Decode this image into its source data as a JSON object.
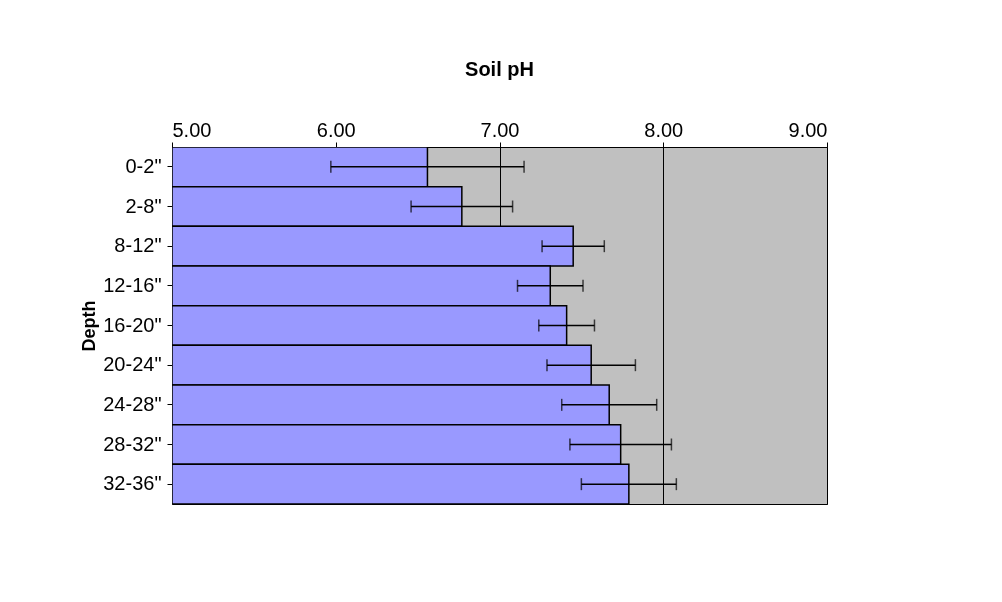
{
  "chart_data": {
    "type": "bar",
    "orientation": "horizontal",
    "title": "Soil pH",
    "ylabel": "Depth",
    "categories": [
      "0-2\"",
      "2-8\"",
      "8-12\"",
      "12-16\"",
      "16-20\"",
      "20-24\"",
      "24-28\"",
      "28-32\"",
      "32-36\""
    ],
    "values": [
      6.56,
      6.77,
      7.45,
      7.31,
      7.41,
      7.56,
      7.67,
      7.74,
      7.79
    ],
    "errors": [
      0.59,
      0.31,
      0.19,
      0.2,
      0.17,
      0.27,
      0.29,
      0.31,
      0.29
    ],
    "color": "#9999ff",
    "xlim": [
      5,
      9
    ],
    "xticks": [
      {
        "value": 5,
        "label": "5.00"
      },
      {
        "value": 6,
        "label": "6.00"
      },
      {
        "value": 7,
        "label": "7.00"
      },
      {
        "value": 8,
        "label": "8.00"
      },
      {
        "value": 9,
        "label": "9.00"
      }
    ],
    "grid": "x"
  }
}
